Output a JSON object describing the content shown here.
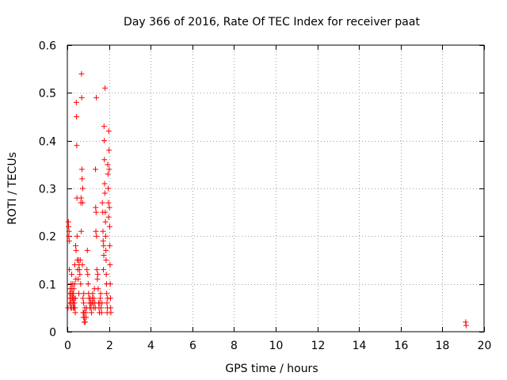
{
  "chart_data": {
    "type": "scatter",
    "title": "Day 366 of 2016, Rate Of TEC Index for receiver paat",
    "xlabel": "GPS time / hours",
    "ylabel": "ROTI / TECUs",
    "xlim": [
      0,
      20
    ],
    "ylim": [
      0,
      0.6
    ],
    "x_ticks": [
      0,
      2,
      4,
      6,
      8,
      10,
      12,
      14,
      16,
      18,
      20
    ],
    "x_tick_labels": [
      "0",
      "2",
      "4",
      "6",
      "8",
      "10",
      "12",
      "14",
      "16",
      "18",
      "20"
    ],
    "y_ticks": [
      0,
      0.1,
      0.2,
      0.3,
      0.4,
      0.5,
      0.6
    ],
    "y_tick_labels": [
      "0",
      "0.1",
      "0.2",
      "0.3",
      "0.4",
      "0.5",
      "0.6"
    ],
    "grid": true,
    "marker": "+",
    "color": "#ff0000",
    "series": [
      {
        "name": "ROTI",
        "points": [
          [
            0.03,
            0.05
          ],
          [
            0.05,
            0.23
          ],
          [
            0.06,
            0.22
          ],
          [
            0.07,
            0.2
          ],
          [
            0.08,
            0.21
          ],
          [
            0.09,
            0.19
          ],
          [
            0.1,
            0.13
          ],
          [
            0.11,
            0.08
          ],
          [
            0.12,
            0.06
          ],
          [
            0.13,
            0.07
          ],
          [
            0.14,
            0.09
          ],
          [
            0.15,
            0.06
          ],
          [
            0.16,
            0.05
          ],
          [
            0.17,
            0.08
          ],
          [
            0.18,
            0.1
          ],
          [
            0.19,
            0.07
          ],
          [
            0.2,
            0.05
          ],
          [
            0.21,
            0.12
          ],
          [
            0.22,
            0.09
          ],
          [
            0.23,
            0.06
          ],
          [
            0.24,
            0.08
          ],
          [
            0.25,
            0.07
          ],
          [
            0.26,
            0.1
          ],
          [
            0.27,
            0.07
          ],
          [
            0.28,
            0.05
          ],
          [
            0.29,
            0.08
          ],
          [
            0.3,
            0.06
          ],
          [
            0.31,
            0.09
          ],
          [
            0.32,
            0.05
          ],
          [
            0.33,
            0.07
          ],
          [
            0.34,
            0.06
          ],
          [
            0.35,
            0.1
          ],
          [
            0.36,
            0.14
          ],
          [
            0.37,
            0.05
          ],
          [
            0.38,
            0.04
          ],
          [
            0.39,
            0.07
          ],
          [
            0.4,
            0.18
          ],
          [
            0.41,
            0.11
          ],
          [
            0.42,
            0.17
          ],
          [
            0.43,
            0.48
          ],
          [
            0.44,
            0.45
          ],
          [
            0.45,
            0.39
          ],
          [
            0.46,
            0.28
          ],
          [
            0.47,
            0.2
          ],
          [
            0.48,
            0.15
          ],
          [
            0.5,
            0.13
          ],
          [
            0.52,
            0.11
          ],
          [
            0.54,
            0.15
          ],
          [
            0.55,
            0.08
          ],
          [
            0.56,
            0.14
          ],
          [
            0.58,
            0.13
          ],
          [
            0.6,
            0.12
          ],
          [
            0.62,
            0.15
          ],
          [
            0.64,
            0.1
          ],
          [
            0.65,
            0.27
          ],
          [
            0.66,
            0.28
          ],
          [
            0.67,
            0.21
          ],
          [
            0.68,
            0.54
          ],
          [
            0.69,
            0.49
          ],
          [
            0.7,
            0.34
          ],
          [
            0.71,
            0.32
          ],
          [
            0.72,
            0.14
          ],
          [
            0.73,
            0.27
          ],
          [
            0.74,
            0.3
          ],
          [
            0.75,
            0.07
          ],
          [
            0.76,
            0.04
          ],
          [
            0.77,
            0.03
          ],
          [
            0.78,
            0.06
          ],
          [
            0.79,
            0.08
          ],
          [
            0.8,
            0.04
          ],
          [
            0.81,
            0.02
          ],
          [
            0.82,
            0.03
          ],
          [
            0.84,
            0.05
          ],
          [
            0.86,
            0.02
          ],
          [
            0.88,
            0.04
          ],
          [
            0.9,
            0.03
          ],
          [
            0.92,
            0.05
          ],
          [
            0.94,
            0.13
          ],
          [
            0.96,
            0.17
          ],
          [
            0.98,
            0.12
          ],
          [
            1.0,
            0.1
          ],
          [
            1.02,
            0.08
          ],
          [
            1.04,
            0.07
          ],
          [
            1.06,
            0.06
          ],
          [
            1.08,
            0.05
          ],
          [
            1.1,
            0.07
          ],
          [
            1.12,
            0.06
          ],
          [
            1.14,
            0.05
          ],
          [
            1.16,
            0.04
          ],
          [
            1.18,
            0.06
          ],
          [
            1.2,
            0.07
          ],
          [
            1.22,
            0.08
          ],
          [
            1.24,
            0.06
          ],
          [
            1.26,
            0.05
          ],
          [
            1.28,
            0.07
          ],
          [
            1.3,
            0.09
          ],
          [
            1.32,
            0.06
          ],
          [
            1.34,
            0.05
          ],
          [
            1.35,
            0.34
          ],
          [
            1.36,
            0.26
          ],
          [
            1.37,
            0.21
          ],
          [
            1.38,
            0.25
          ],
          [
            1.39,
            0.49
          ],
          [
            1.4,
            0.2
          ],
          [
            1.42,
            0.13
          ],
          [
            1.44,
            0.11
          ],
          [
            1.46,
            0.12
          ],
          [
            1.48,
            0.09
          ],
          [
            1.5,
            0.06
          ],
          [
            1.52,
            0.05
          ],
          [
            1.54,
            0.04
          ],
          [
            1.56,
            0.06
          ],
          [
            1.58,
            0.07
          ],
          [
            1.6,
            0.08
          ],
          [
            1.62,
            0.05
          ],
          [
            1.64,
            0.04
          ],
          [
            1.66,
            0.06
          ],
          [
            1.68,
            0.27
          ],
          [
            1.7,
            0.25
          ],
          [
            1.71,
            0.21
          ],
          [
            1.72,
            0.19
          ],
          [
            1.73,
            0.13
          ],
          [
            1.74,
            0.18
          ],
          [
            1.75,
            0.16
          ],
          [
            1.76,
            0.43
          ],
          [
            1.77,
            0.4
          ],
          [
            1.78,
            0.36
          ],
          [
            1.79,
            0.31
          ],
          [
            1.8,
            0.29
          ],
          [
            1.81,
            0.51
          ],
          [
            1.82,
            0.25
          ],
          [
            1.83,
            0.23
          ],
          [
            1.84,
            0.2
          ],
          [
            1.85,
            0.17
          ],
          [
            1.86,
            0.15
          ],
          [
            1.87,
            0.12
          ],
          [
            1.88,
            0.1
          ],
          [
            1.89,
            0.08
          ],
          [
            1.9,
            0.06
          ],
          [
            1.91,
            0.04
          ],
          [
            1.92,
            0.05
          ],
          [
            1.93,
            0.07
          ],
          [
            1.94,
            0.35
          ],
          [
            1.95,
            0.33
          ],
          [
            1.96,
            0.3
          ],
          [
            1.97,
            0.27
          ],
          [
            1.98,
            0.24
          ],
          [
            1.99,
            0.42
          ],
          [
            2.0,
            0.38
          ],
          [
            2.01,
            0.34
          ],
          [
            2.02,
            0.26
          ],
          [
            2.03,
            0.22
          ],
          [
            2.04,
            0.18
          ],
          [
            2.05,
            0.14
          ],
          [
            2.06,
            0.1
          ],
          [
            2.07,
            0.07
          ],
          [
            2.08,
            0.05
          ],
          [
            2.09,
            0.04
          ],
          [
            19.12,
            0.02
          ],
          [
            19.14,
            0.013
          ]
        ]
      }
    ]
  }
}
